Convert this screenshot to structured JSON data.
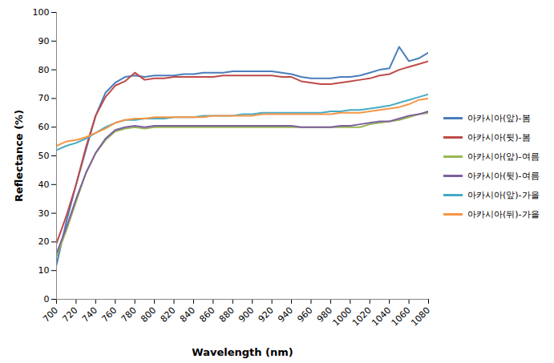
{
  "chart_data": {
    "type": "line",
    "x_label": "Wavelength (nm)",
    "y_label": "Reflectance (%)",
    "x": [
      700,
      710,
      720,
      730,
      740,
      750,
      760,
      770,
      780,
      790,
      800,
      810,
      820,
      830,
      840,
      850,
      860,
      870,
      880,
      890,
      900,
      910,
      920,
      930,
      940,
      950,
      960,
      970,
      980,
      990,
      1000,
      1010,
      1020,
      1030,
      1040,
      1050,
      1060,
      1070,
      1080
    ],
    "xlim": [
      700,
      1080
    ],
    "xticks": [
      700,
      720,
      740,
      760,
      780,
      800,
      820,
      840,
      860,
      880,
      900,
      920,
      940,
      960,
      980,
      1000,
      1020,
      1040,
      1060,
      1080
    ],
    "ylim": [
      0,
      100
    ],
    "yticks": [
      0,
      10,
      20,
      30,
      40,
      50,
      60,
      70,
      80,
      90,
      100
    ],
    "grid": false,
    "legend": "right",
    "series": [
      {
        "name": "아카시아(앞)-봄",
        "color": "#4a7ebb",
        "values": [
          12,
          27,
          40,
          52,
          64,
          72,
          75.5,
          77.5,
          78,
          77.5,
          78,
          78,
          78,
          78.5,
          78.5,
          79,
          79,
          79,
          79.5,
          79.5,
          79.5,
          79.5,
          79.5,
          79,
          78.5,
          77.5,
          77,
          77,
          77,
          77.5,
          77.5,
          78,
          79,
          80,
          80.5,
          88,
          83,
          84,
          86
        ]
      },
      {
        "name": "아카시아(뒷)-봄",
        "color": "#be4b48",
        "values": [
          19.5,
          29,
          40,
          53,
          64,
          70.5,
          74.5,
          76,
          79,
          76.5,
          77,
          77,
          77.5,
          77.5,
          77.5,
          77.5,
          77.5,
          78,
          78,
          78,
          78,
          78,
          78,
          77.5,
          77.5,
          76,
          75.5,
          75,
          75,
          75.5,
          76,
          76.5,
          77,
          78,
          78.5,
          80,
          81,
          82,
          83
        ]
      },
      {
        "name": "아카시아(앞)-여름",
        "color": "#98b954",
        "values": [
          15,
          24,
          34,
          44,
          51,
          55.5,
          58.5,
          59.5,
          60,
          59.5,
          60,
          60,
          60,
          60,
          60,
          60,
          60,
          60,
          60,
          60,
          60,
          60,
          60,
          60,
          60,
          60,
          60,
          60,
          60,
          60,
          60,
          60,
          61,
          61.5,
          62,
          62.5,
          63.5,
          64.5,
          65
        ]
      },
      {
        "name": "아카시아(뒷)-여름",
        "color": "#7d60a0",
        "values": [
          16,
          25,
          35,
          44,
          51,
          56,
          59,
          60,
          60.5,
          60,
          60.5,
          60.5,
          60.5,
          60.5,
          60.5,
          60.5,
          60.5,
          60.5,
          60.5,
          60.5,
          60.5,
          60.5,
          60.5,
          60.5,
          60.5,
          60,
          60,
          60,
          60,
          60.5,
          60.5,
          61,
          61.5,
          62,
          62,
          63,
          64,
          64.5,
          65.5
        ]
      },
      {
        "name": "아카시아(앞)-가을",
        "color": "#46aac5",
        "values": [
          52,
          53.5,
          54.5,
          56,
          58,
          60,
          61.5,
          62.5,
          62.5,
          63,
          63,
          63,
          63.5,
          63.5,
          63.5,
          64,
          64,
          64,
          64,
          64.5,
          64.5,
          65,
          65,
          65,
          65,
          65,
          65,
          65,
          65.5,
          65.5,
          66,
          66,
          66.5,
          67,
          67.5,
          68.5,
          69.5,
          70.5,
          71.5
        ]
      },
      {
        "name": "아카시아(뒤)-가을",
        "color": "#f79646",
        "values": [
          53.5,
          55,
          55.5,
          56.5,
          58,
          59.5,
          61.5,
          62.5,
          63,
          63,
          63.5,
          63.5,
          63.5,
          63.5,
          63.5,
          63.5,
          64,
          64,
          64,
          64,
          64,
          64.5,
          64.5,
          64.5,
          64.5,
          64.5,
          64.5,
          64.5,
          64.5,
          65,
          65,
          65,
          65.5,
          66,
          66.5,
          67,
          68,
          69.5,
          70
        ]
      }
    ]
  }
}
